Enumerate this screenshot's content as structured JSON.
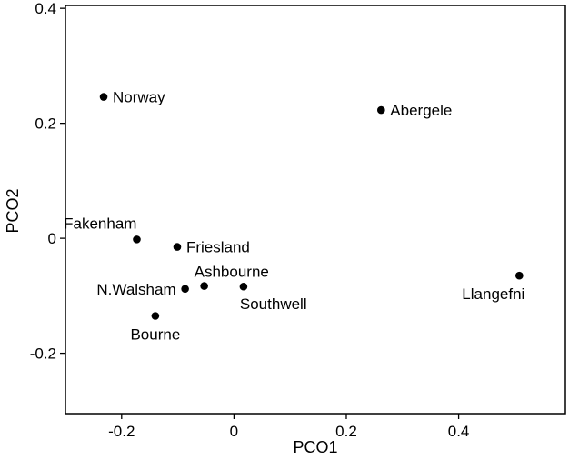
{
  "chart_data": {
    "type": "scatter",
    "xlabel": "PCO1",
    "ylabel": "PCO2",
    "xlim": [
      -0.3,
      0.59
    ],
    "ylim": [
      -0.305,
      0.405
    ],
    "xticks": [
      -0.2,
      0,
      0.2,
      0.4
    ],
    "yticks": [
      -0.2,
      0,
      0.2,
      0.4
    ],
    "xtick_labels": [
      "-0.2",
      "0",
      "0.2",
      "0.4"
    ],
    "ytick_labels": [
      "-0.2",
      "0",
      "0.2",
      "0.4"
    ],
    "grid": false,
    "legend": "none",
    "marker_color": "#000000",
    "points": [
      {
        "label": "Norway",
        "x": -0.232,
        "y": 0.246,
        "label_pos": "right"
      },
      {
        "label": "Abergele",
        "x": 0.262,
        "y": 0.223,
        "label_pos": "right"
      },
      {
        "label": "Fakenham",
        "x": -0.173,
        "y": -0.002,
        "label_pos": "above-left"
      },
      {
        "label": "Friesland",
        "x": -0.101,
        "y": -0.015,
        "label_pos": "right"
      },
      {
        "label": "Ashbourne",
        "x": -0.053,
        "y": -0.083,
        "label_pos": "above-right"
      },
      {
        "label": "N.Walsham",
        "x": -0.087,
        "y": -0.088,
        "label_pos": "left"
      },
      {
        "label": "Southwell",
        "x": 0.017,
        "y": -0.084,
        "label_pos": "below-right"
      },
      {
        "label": "Bourne",
        "x": -0.14,
        "y": -0.135,
        "label_pos": "below"
      },
      {
        "label": "Llangefni",
        "x": 0.508,
        "y": -0.065,
        "label_pos": "below-left"
      }
    ]
  }
}
